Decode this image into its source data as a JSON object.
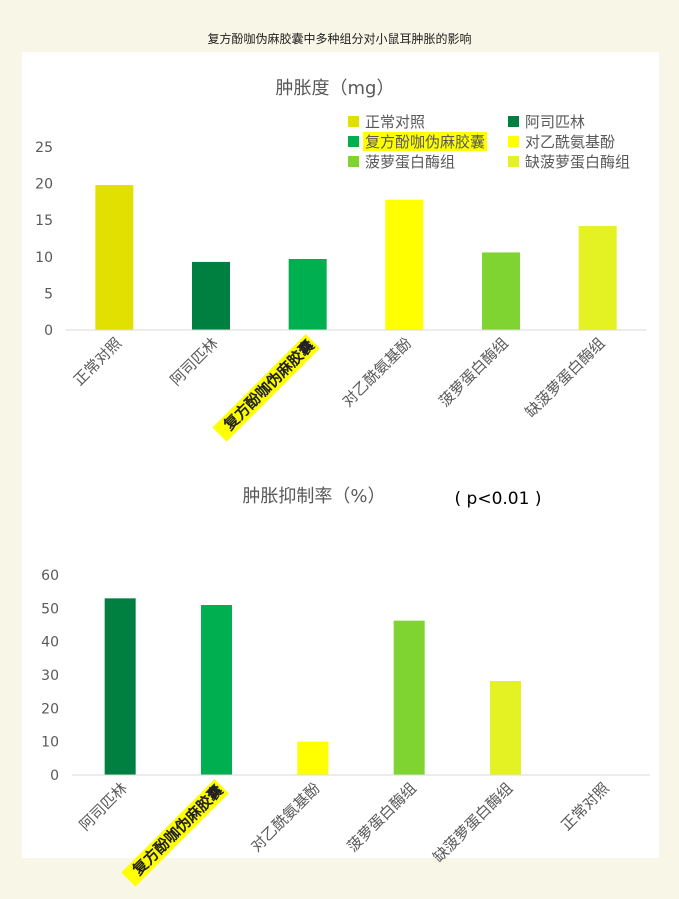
{
  "page_title": "复方酚咖伪麻胶囊中多种组分对小鼠耳肿胀的影响",
  "colors": {
    "page_bg": "#f8f6e6",
    "panel_bg": "#ffffff",
    "highlight": "#ffff00",
    "axis": "#d9d9d9",
    "text": "#595959"
  },
  "chart_data": [
    {
      "type": "bar",
      "title": "肿胀度（mg）",
      "categories": [
        "正常对照",
        "阿司匹林",
        "复方酚咖伪麻胶囊",
        "对乙酰氨基酚",
        "菠萝蛋白酶组",
        "缺菠萝蛋白酶组"
      ],
      "values": [
        19.8,
        9.3,
        9.7,
        17.8,
        10.6,
        14.2
      ],
      "colors": [
        "#e2e000",
        "#008040",
        "#00b050",
        "#ffff00",
        "#7fd431",
        "#e4f224"
      ],
      "highlighted_category": "复方酚咖伪麻胶囊",
      "ylim": [
        0,
        25
      ],
      "yticks": [
        0,
        5,
        10,
        15,
        20,
        25
      ],
      "grid": false,
      "legend": {
        "position": "top-right",
        "entries": [
          {
            "label": "正常对照",
            "color": "#e2e000",
            "highlight": false
          },
          {
            "label": "阿司匹林",
            "color": "#008040",
            "highlight": false
          },
          {
            "label": "复方酚咖伪麻胶囊",
            "color": "#00b050",
            "highlight": true
          },
          {
            "label": "对乙酰氨基酚",
            "color": "#ffff00",
            "highlight": false
          },
          {
            "label": "菠萝蛋白酶组",
            "color": "#7fd431",
            "highlight": false
          },
          {
            "label": "缺菠萝蛋白酶组",
            "color": "#e4f224",
            "highlight": false
          }
        ]
      }
    },
    {
      "type": "bar",
      "title": "肿胀抑制率（%）",
      "annotation": "( p<0.01 )",
      "categories": [
        "阿司匹林",
        "复方酚咖伪麻胶囊",
        "对乙酰氨基酚",
        "菠萝蛋白酶组",
        "缺菠萝蛋白酶组",
        "正常对照"
      ],
      "values": [
        53,
        51,
        10,
        46.3,
        28.2,
        0
      ],
      "colors": [
        "#008040",
        "#00b050",
        "#ffff00",
        "#7fd431",
        "#e4f224",
        "#e2e000"
      ],
      "highlighted_category": "复方酚咖伪麻胶囊",
      "ylim": [
        0,
        60
      ],
      "yticks": [
        0,
        10,
        20,
        30,
        40,
        50,
        60
      ],
      "grid": false
    }
  ]
}
